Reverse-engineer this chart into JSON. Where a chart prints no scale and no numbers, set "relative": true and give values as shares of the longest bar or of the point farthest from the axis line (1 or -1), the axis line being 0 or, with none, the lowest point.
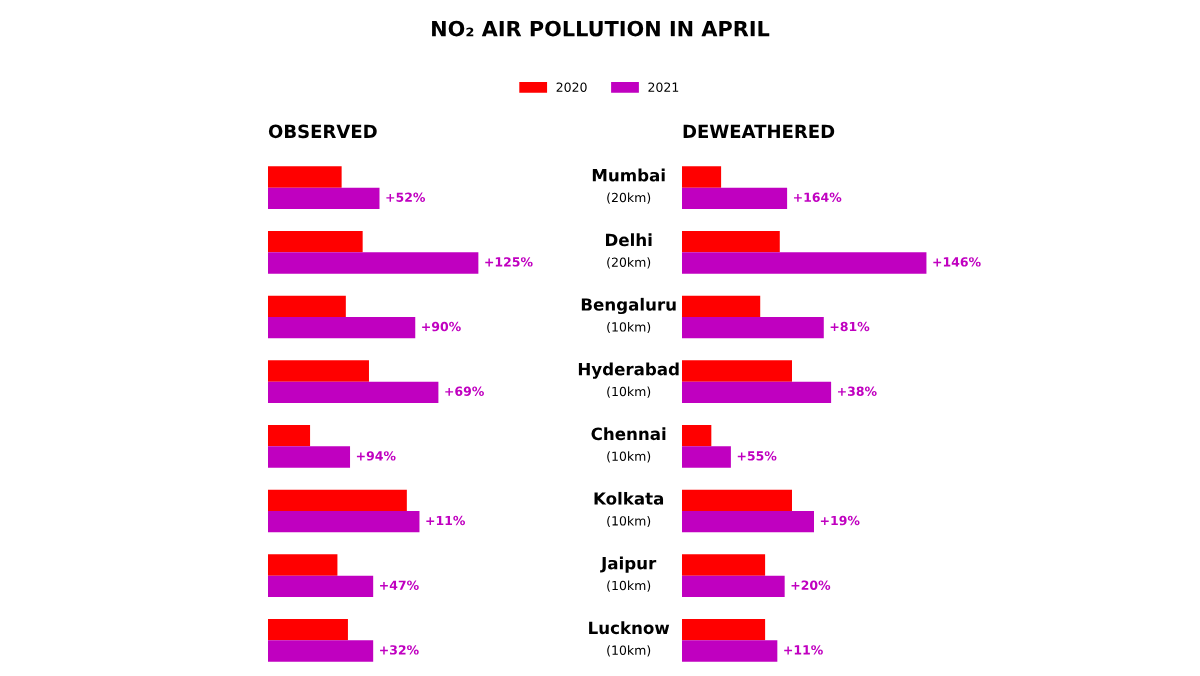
{
  "chart_data": [
    {
      "type": "bar",
      "orientation": "horizontal",
      "relative": true,
      "title": "NO₂ AIR POLLUTION IN APRIL",
      "subtitle": "OBSERVED",
      "legend": "top",
      "annotations": [
        "+52%",
        "+125%",
        "+90%",
        "+69%",
        "+94%",
        "+11%",
        "+47%",
        "+32%"
      ],
      "categories": [
        "Mumbai\n(20km)",
        "Delhi\n(20km)",
        "Bengaluru\n(10km)",
        "Hyderabad\n(10km)",
        "Chennai\n(10km)",
        "Kolkata\n(10km)",
        "Jaipur\n(10km)",
        "Lucknow\n(10km)"
      ],
      "series": [
        {
          "name": "2020",
          "color": "#ff0000",
          "values": [
            0.35,
            0.45,
            0.37,
            0.48,
            0.2,
            0.66,
            0.33,
            0.38
          ]
        },
        {
          "name": "2021",
          "color": "#c000c0",
          "values": [
            0.53,
            1.0,
            0.7,
            0.81,
            0.39,
            0.72,
            0.5,
            0.5
          ]
        }
      ]
    },
    {
      "type": "bar",
      "orientation": "horizontal",
      "relative": true,
      "subtitle": "DEWEATHERED",
      "annotations": [
        "+164%",
        "+146%",
        "+81%",
        "+38%",
        "+55%",
        "+19%",
        "+20%",
        "+11%"
      ],
      "categories": [
        null,
        null,
        null,
        null,
        null,
        null,
        null,
        null
      ],
      "series": [
        {
          "color": "#ff0000",
          "values": [
            0.16,
            0.4,
            0.32,
            0.45,
            0.12,
            0.45,
            0.34,
            0.34
          ]
        },
        {
          "color": "#c000c0",
          "values": [
            0.43,
            1.0,
            0.58,
            0.61,
            0.2,
            0.54,
            0.42,
            0.39
          ]
        }
      ]
    }
  ]
}
